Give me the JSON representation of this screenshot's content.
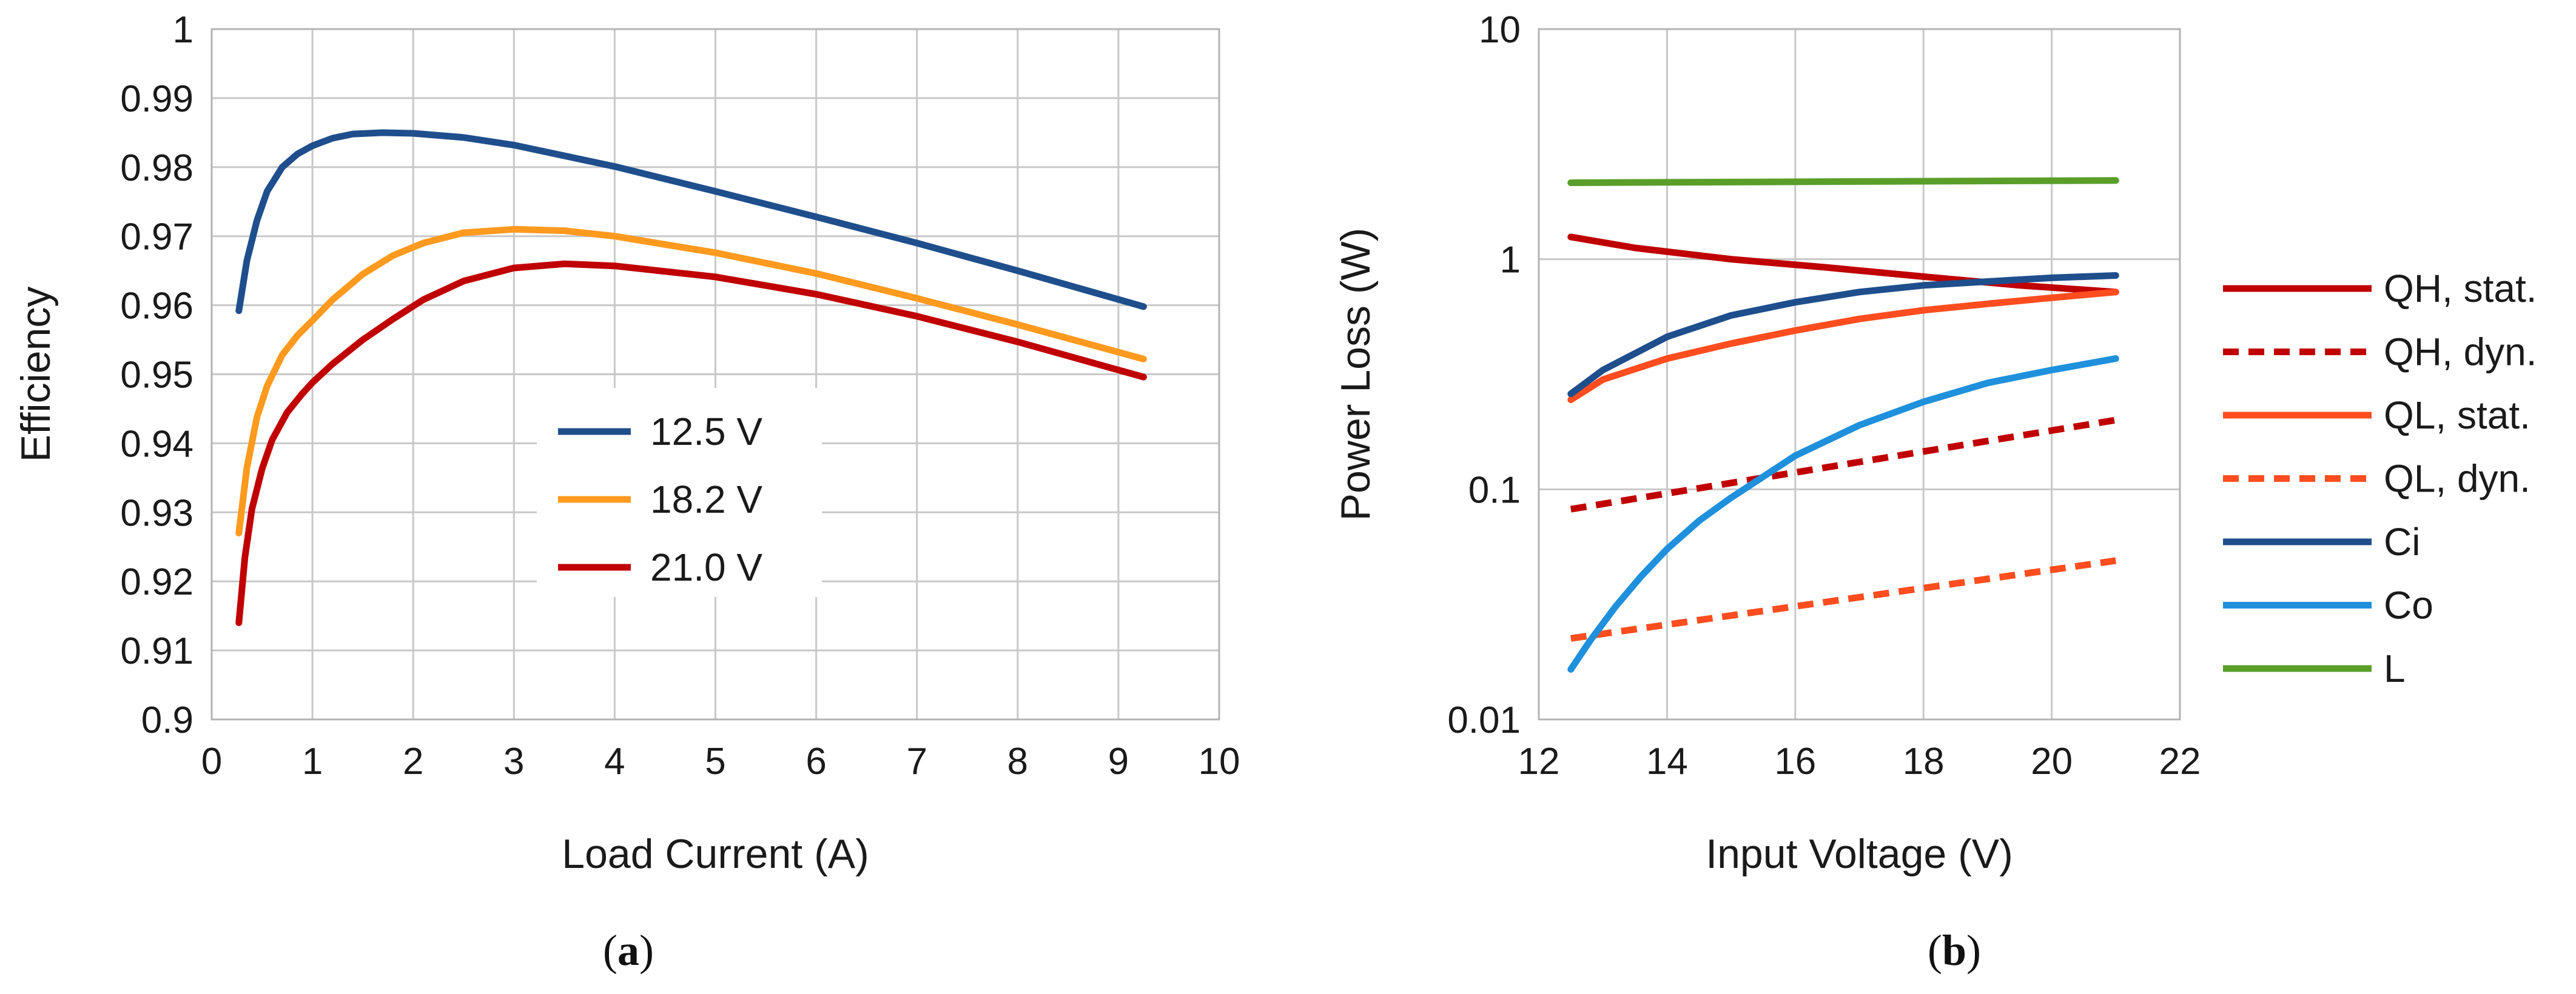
{
  "chart_data": [
    {
      "type": "line",
      "caption": "a",
      "xlabel": "Load Current (A)",
      "ylabel": "Efficiency",
      "xlim": [
        0,
        10
      ],
      "ylim": [
        0.9,
        1.0
      ],
      "xticks": [
        0,
        1,
        2,
        3,
        4,
        5,
        6,
        7,
        8,
        9,
        10
      ],
      "yticks": [
        0.9,
        0.91,
        0.92,
        0.93,
        0.94,
        0.95,
        0.96,
        0.97,
        0.98,
        0.99,
        1
      ],
      "xtick_labels": [
        "0",
        "1",
        "2",
        "3",
        "4",
        "5",
        "6",
        "7",
        "8",
        "9",
        "10"
      ],
      "ytick_labels": [
        "0.9",
        "0.91",
        "0.92",
        "0.93",
        "0.94",
        "0.95",
        "0.96",
        "0.97",
        "0.98",
        "0.99",
        "1"
      ],
      "grid": true,
      "legend_position": "center",
      "series": [
        {
          "name": "12.5 V",
          "color": "#1f4e8c",
          "dash": false,
          "x": [
            0.27,
            0.35,
            0.45,
            0.55,
            0.7,
            0.85,
            1.0,
            1.2,
            1.4,
            1.7,
            2.0,
            2.5,
            3.0,
            4.0,
            5.0,
            6.0,
            7.0,
            8.0,
            9.25
          ],
          "y": [
            0.9592,
            0.9665,
            0.9723,
            0.9765,
            0.98,
            0.9819,
            0.9831,
            0.9842,
            0.9848,
            0.985,
            0.9849,
            0.9843,
            0.9832,
            0.9801,
            0.9765,
            0.9728,
            0.969,
            0.965,
            0.9598
          ]
        },
        {
          "name": "18.2 V",
          "color": "#ff9a1f",
          "dash": false,
          "x": [
            0.27,
            0.35,
            0.45,
            0.55,
            0.7,
            0.85,
            1.0,
            1.2,
            1.5,
            1.8,
            2.1,
            2.5,
            3.0,
            3.5,
            4.0,
            5.0,
            6.0,
            7.0,
            8.0,
            9.25
          ],
          "y": [
            0.927,
            0.9365,
            0.9438,
            0.9483,
            0.9528,
            0.9556,
            0.9578,
            0.9608,
            0.9645,
            0.9672,
            0.969,
            0.9705,
            0.971,
            0.9708,
            0.97,
            0.9676,
            0.9646,
            0.961,
            0.9572,
            0.9522
          ]
        },
        {
          "name": "21.0 V",
          "color": "#c00000",
          "dash": false,
          "x": [
            0.27,
            0.33,
            0.4,
            0.5,
            0.6,
            0.75,
            0.9,
            1.0,
            1.2,
            1.5,
            1.8,
            2.1,
            2.5,
            3.0,
            3.5,
            4.0,
            5.0,
            6.0,
            7.0,
            8.0,
            9.25
          ],
          "y": [
            0.914,
            0.9235,
            0.9305,
            0.9363,
            0.9405,
            0.9445,
            0.9472,
            0.9488,
            0.9515,
            0.955,
            0.958,
            0.9608,
            0.9635,
            0.9654,
            0.966,
            0.9657,
            0.9641,
            0.9616,
            0.9584,
            0.9547,
            0.9496
          ]
        }
      ]
    },
    {
      "type": "line",
      "caption": "b",
      "xlabel": "Input Voltage (V)",
      "ylabel": "Power Loss (W)",
      "yscale": "log",
      "xlim": [
        12,
        22
      ],
      "ylim": [
        0.01,
        10
      ],
      "xticks": [
        12,
        14,
        16,
        18,
        20,
        22
      ],
      "yticks": [
        0.01,
        0.1,
        1,
        10
      ],
      "xtick_labels": [
        "12",
        "14",
        "16",
        "18",
        "20",
        "22"
      ],
      "ytick_labels": [
        "0.01",
        "0.1",
        "1",
        "10"
      ],
      "grid": true,
      "legend_position": "right",
      "series": [
        {
          "name": "QH, stat.",
          "color": "#c00000",
          "dash": false,
          "x": [
            12.5,
            13.5,
            15,
            16.5,
            18,
            19.5,
            21
          ],
          "y": [
            1.25,
            1.12,
            1.0,
            0.92,
            0.84,
            0.77,
            0.72
          ]
        },
        {
          "name": "QH, dyn.",
          "color": "#c00000",
          "dash": true,
          "x": [
            12.5,
            21
          ],
          "y": [
            0.082,
            0.2
          ]
        },
        {
          "name": "QL, stat.",
          "color": "#ff4d1f",
          "dash": false,
          "x": [
            12.5,
            13,
            14,
            15,
            16,
            17,
            18,
            19,
            20,
            21
          ],
          "y": [
            0.245,
            0.3,
            0.37,
            0.43,
            0.49,
            0.55,
            0.6,
            0.64,
            0.68,
            0.72
          ]
        },
        {
          "name": "QL, dyn.",
          "color": "#ff4d1f",
          "dash": true,
          "x": [
            12.5,
            21
          ],
          "y": [
            0.0225,
            0.049
          ]
        },
        {
          "name": "Ci",
          "color": "#1f4e8c",
          "dash": false,
          "x": [
            12.5,
            13,
            14,
            15,
            16,
            17,
            18,
            19,
            20,
            21
          ],
          "y": [
            0.26,
            0.33,
            0.46,
            0.57,
            0.65,
            0.72,
            0.77,
            0.8,
            0.83,
            0.85
          ]
        },
        {
          "name": "Co",
          "color": "#1e90dc",
          "dash": false,
          "x": [
            12.5,
            12.8,
            13.2,
            13.6,
            14,
            14.5,
            15,
            16,
            17,
            18,
            19,
            20,
            21
          ],
          "y": [
            0.0165,
            0.022,
            0.031,
            0.042,
            0.055,
            0.073,
            0.092,
            0.14,
            0.19,
            0.24,
            0.29,
            0.33,
            0.37
          ]
        },
        {
          "name": "L",
          "color": "#5a9e2a",
          "dash": false,
          "x": [
            12.5,
            21
          ],
          "y": [
            2.15,
            2.2
          ]
        }
      ]
    }
  ]
}
